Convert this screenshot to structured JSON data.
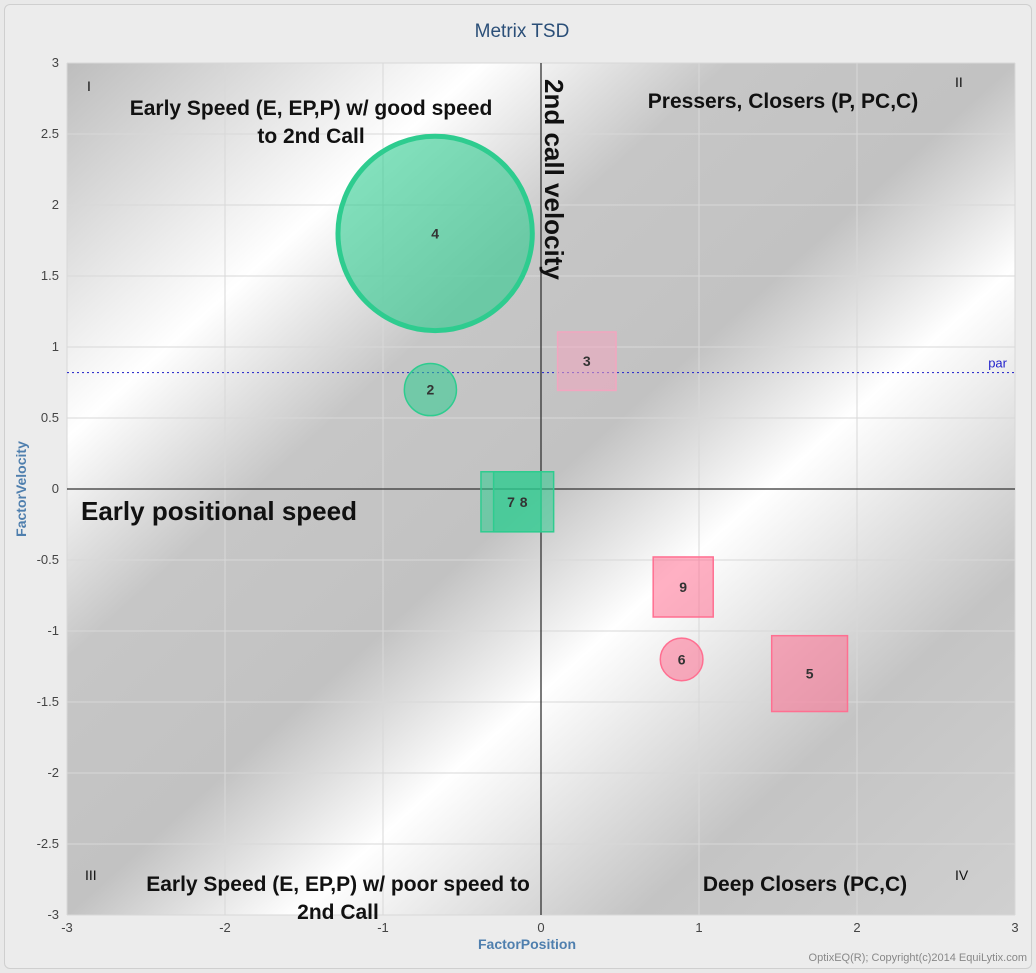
{
  "chart_data": {
    "type": "scatter",
    "title": "Metrix TSD",
    "xlabel": "FactorPosition",
    "ylabel": "FactorVelocity",
    "xlim": [
      -3,
      3
    ],
    "ylim": [
      -3,
      3
    ],
    "xticks": [
      -3,
      -2,
      -1,
      0,
      1,
      2,
      3
    ],
    "yticks": [
      -3,
      -2.5,
      -2,
      -1.5,
      -1,
      -0.5,
      0,
      0.5,
      1,
      1.5,
      2,
      2.5,
      3
    ],
    "grid": true,
    "par": {
      "label": "par",
      "value": 0.82,
      "color": "#3333cc"
    },
    "points": [
      {
        "label": "4",
        "x": -0.67,
        "y": 1.8,
        "shape": "circle",
        "size": 1.23,
        "color": "#2ecc8f"
      },
      {
        "label": "2",
        "x": -0.7,
        "y": 0.7,
        "shape": "circle",
        "size": 0.33,
        "color": "#2ecc8f"
      },
      {
        "label": "3",
        "x": 0.29,
        "y": 0.9,
        "shape": "square",
        "size": 0.37,
        "color": "#f2a6c0"
      },
      {
        "label": "7",
        "x": -0.19,
        "y": -0.09,
        "shape": "square",
        "size": 0.38,
        "color": "#2ecc8f"
      },
      {
        "label": "8",
        "x": -0.11,
        "y": -0.09,
        "shape": "square",
        "size": 0.38,
        "color": "#2ecc8f"
      },
      {
        "label": "9",
        "x": 0.9,
        "y": -0.69,
        "shape": "square",
        "size": 0.38,
        "color": "#ff6f91"
      },
      {
        "label": "6",
        "x": 0.89,
        "y": -1.2,
        "shape": "circle",
        "size": 0.27,
        "color": "#ff6f91"
      },
      {
        "label": "5",
        "x": 1.7,
        "y": -1.3,
        "shape": "square",
        "size": 0.48,
        "color": "#ff6f91"
      }
    ],
    "quadrants": [
      {
        "numeral": "I",
        "text": [
          "Early Speed (E, EP,P) w/ good speed",
          "to 2nd Call"
        ]
      },
      {
        "numeral": "II",
        "text": [
          "Pressers, Closers (P, PC,C)"
        ]
      },
      {
        "numeral": "III",
        "text": [
          "Early Speed (E, EP,P) w/ poor speed to",
          "2nd Call"
        ]
      },
      {
        "numeral": "IV",
        "text": [
          "Deep Closers (PC,C)"
        ]
      }
    ],
    "vertical_axis_label": "2nd call velocity",
    "horizontal_axis_label": "Early positional speed",
    "credit": "OptixEQ(R); Copyright(c)2014 EquiLytix.com"
  }
}
